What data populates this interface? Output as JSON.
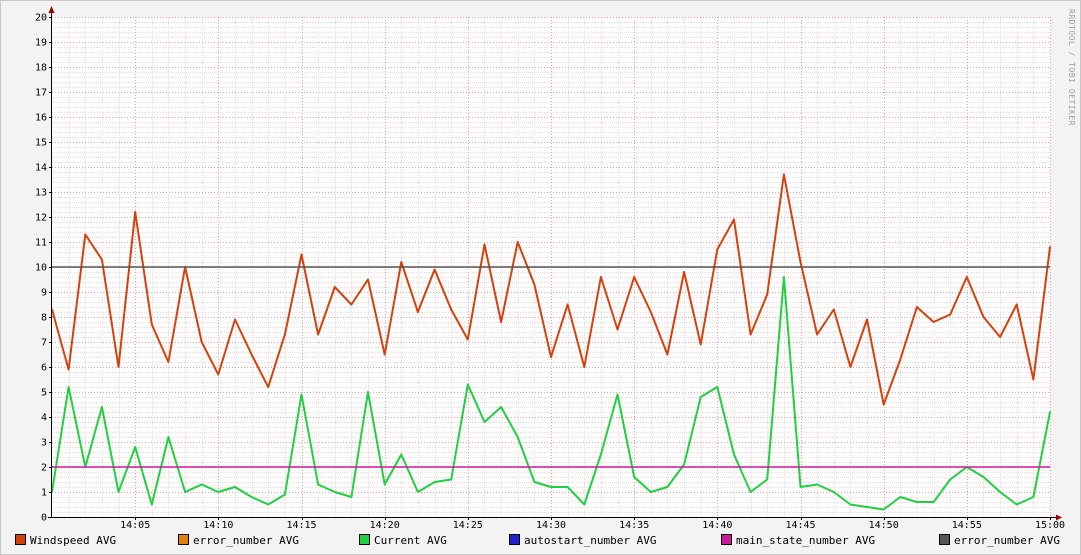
{
  "watermark": "RRDTOOL / TOBI OETIKER",
  "chart_data": {
    "type": "line",
    "title": "",
    "xlabel": "",
    "ylabel": "",
    "ylim": [
      0,
      20
    ],
    "y_ticks": [
      "0",
      "1",
      "2",
      "3",
      "4",
      "5",
      "6",
      "7",
      "8",
      "9",
      "10",
      "11",
      "12",
      "13",
      "14",
      "15",
      "16",
      "17",
      "18",
      "19",
      "20"
    ],
    "x_range": [
      "14:00",
      "15:00"
    ],
    "x_ticks": [
      "14:05",
      "14:10",
      "14:15",
      "14:20",
      "14:25",
      "14:30",
      "14:35",
      "14:40",
      "14:45",
      "14:50",
      "14:55",
      "15:00"
    ],
    "grid": true,
    "legend_placement": "bottom",
    "legend": [
      {
        "label": "Windspeed AVG",
        "color": "#d5410c"
      },
      {
        "label": "error_number AVG",
        "color": "#e5800f"
      },
      {
        "label": "Current AVG",
        "color": "#1fd140"
      },
      {
        "label": "autostart_number AVG",
        "color": "#2222d0"
      },
      {
        "label": "main_state_number AVG",
        "color": "#cc1a9a"
      },
      {
        "label": "error_number AVG",
        "color": "#555555"
      }
    ],
    "series": [
      {
        "name": "Windspeed AVG",
        "color": "#d5410c",
        "x": [
          "14:00",
          "14:01",
          "14:02",
          "14:03",
          "14:04",
          "14:05",
          "14:06",
          "14:07",
          "14:08",
          "14:09",
          "14:10",
          "14:11",
          "14:12",
          "14:13",
          "14:14",
          "14:15",
          "14:16",
          "14:17",
          "14:18",
          "14:19",
          "14:20",
          "14:21",
          "14:22",
          "14:23",
          "14:24",
          "14:25",
          "14:26",
          "14:27",
          "14:28",
          "14:29",
          "14:30",
          "14:31",
          "14:32",
          "14:33",
          "14:34",
          "14:35",
          "14:36",
          "14:37",
          "14:38",
          "14:39",
          "14:40",
          "14:41",
          "14:42",
          "14:43",
          "14:44",
          "14:45",
          "14:46",
          "14:47",
          "14:48",
          "14:49",
          "14:50",
          "14:51",
          "14:52",
          "14:53",
          "14:54",
          "14:55",
          "14:56",
          "14:57",
          "14:58",
          "14:59",
          "15:00"
        ],
        "values": [
          8.3,
          5.9,
          11.3,
          10.3,
          6.0,
          12.2,
          7.7,
          6.2,
          10.0,
          7.0,
          5.7,
          7.9,
          6.5,
          5.2,
          7.3,
          10.5,
          7.3,
          9.2,
          8.5,
          9.5,
          6.5,
          10.2,
          8.2,
          9.9,
          8.3,
          7.1,
          10.9,
          7.8,
          11.0,
          9.3,
          6.4,
          8.5,
          6.0,
          9.6,
          7.5,
          9.6,
          8.2,
          6.5,
          9.8,
          6.9,
          10.7,
          11.9,
          7.3,
          8.9,
          13.7,
          10.2,
          7.3,
          8.3,
          6.0,
          7.9,
          4.5,
          6.3,
          8.4,
          7.8,
          8.1,
          9.6,
          8.0,
          7.2,
          8.5,
          5.5,
          10.8
        ]
      },
      {
        "name": "Current AVG",
        "color": "#1fd140",
        "x": [
          "14:00",
          "14:01",
          "14:02",
          "14:03",
          "14:04",
          "14:05",
          "14:06",
          "14:07",
          "14:08",
          "14:09",
          "14:10",
          "14:11",
          "14:12",
          "14:13",
          "14:14",
          "14:15",
          "14:16",
          "14:17",
          "14:18",
          "14:19",
          "14:20",
          "14:21",
          "14:22",
          "14:23",
          "14:24",
          "14:25",
          "14:26",
          "14:27",
          "14:28",
          "14:29",
          "14:30",
          "14:31",
          "14:32",
          "14:33",
          "14:34",
          "14:35",
          "14:36",
          "14:37",
          "14:38",
          "14:39",
          "14:40",
          "14:41",
          "14:42",
          "14:43",
          "14:44",
          "14:45",
          "14:46",
          "14:47",
          "14:48",
          "14:49",
          "14:50",
          "14:51",
          "14:52",
          "14:53",
          "14:54",
          "14:55",
          "14:56",
          "14:57",
          "14:58",
          "14:59",
          "15:00"
        ],
        "values": [
          1.0,
          5.2,
          2.0,
          4.4,
          1.0,
          2.8,
          0.5,
          3.2,
          1.0,
          1.3,
          1.0,
          1.2,
          0.8,
          0.5,
          0.9,
          4.9,
          1.3,
          1.0,
          0.8,
          5.0,
          1.3,
          2.5,
          1.0,
          1.4,
          1.5,
          5.3,
          3.8,
          4.4,
          3.2,
          1.4,
          1.2,
          1.2,
          0.5,
          2.5,
          4.9,
          1.6,
          1.0,
          1.2,
          2.1,
          4.8,
          5.2,
          2.5,
          1.0,
          1.5,
          9.6,
          1.2,
          1.3,
          1.0,
          0.5,
          0.4,
          0.3,
          0.8,
          0.6,
          0.6,
          1.5,
          2.0,
          1.6,
          1.0,
          0.5,
          0.8,
          4.2
        ]
      },
      {
        "name": "error_number AVG",
        "color": "#555555",
        "x": [
          "14:00",
          "15:00"
        ],
        "values": [
          10,
          10
        ]
      },
      {
        "name": "main_state_number AVG",
        "color": "#cc1a9a",
        "x": [
          "14:00",
          "15:00"
        ],
        "values": [
          2,
          2
        ]
      }
    ]
  }
}
